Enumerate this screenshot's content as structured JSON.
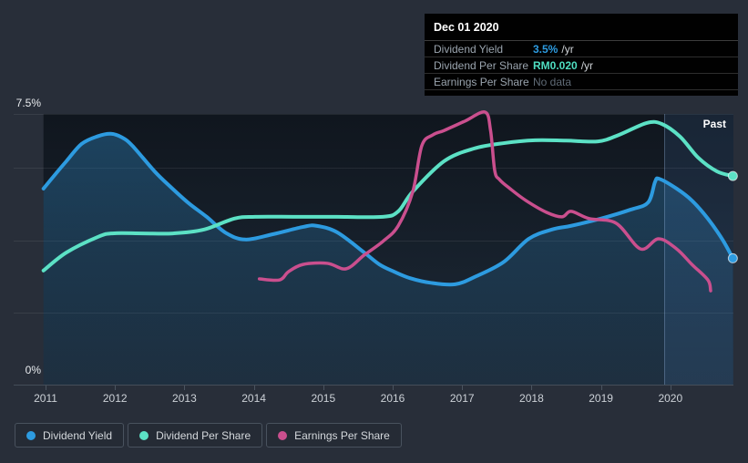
{
  "tooltip": {
    "date": "Dec 01 2020",
    "rows": [
      {
        "label": "Dividend Yield",
        "value": "3.5%",
        "suffix": "/yr",
        "value_color": "#2d9be0",
        "muted": false
      },
      {
        "label": "Dividend Per Share",
        "value": "RM0.020",
        "suffix": "/yr",
        "value_color": "#4fdfc2",
        "muted": false
      },
      {
        "label": "Earnings Per Share",
        "value": "No data",
        "suffix": "",
        "value_color": "#606b76",
        "muted": true
      }
    ]
  },
  "axis": {
    "y_top_label": "7.5%",
    "y_bottom_label": "0%"
  },
  "annotations": {
    "past_label": "Past"
  },
  "chart_data": {
    "type": "line",
    "title": "",
    "xlabel": "",
    "ylabel": "",
    "y_unit": "%",
    "xlim": [
      2010.97,
      2020.91
    ],
    "ylim": [
      0,
      7.5
    ],
    "x_ticks": [
      2011,
      2012,
      2013,
      2014,
      2015,
      2016,
      2017,
      2018,
      2019,
      2020
    ],
    "gridlines_pct": [
      7.5,
      6,
      4,
      2
    ],
    "grid": true,
    "legend_position": "bottom-left",
    "past_boundary_x": 2019.91,
    "series": [
      {
        "name": "Dividend Yield",
        "color": "#2d9be0",
        "area_fill": true,
        "end_dot": true,
        "points": [
          [
            2010.97,
            5.43
          ],
          [
            2011.15,
            5.85
          ],
          [
            2011.3,
            6.19
          ],
          [
            2011.52,
            6.67
          ],
          [
            2011.75,
            6.88
          ],
          [
            2011.94,
            6.95
          ],
          [
            2012.1,
            6.85
          ],
          [
            2012.25,
            6.62
          ],
          [
            2012.57,
            5.91
          ],
          [
            2012.8,
            5.48
          ],
          [
            2013.06,
            5.03
          ],
          [
            2013.32,
            4.65
          ],
          [
            2013.6,
            4.2
          ],
          [
            2013.88,
            4.02
          ],
          [
            2014.28,
            4.17
          ],
          [
            2014.71,
            4.37
          ],
          [
            2014.9,
            4.4
          ],
          [
            2015.2,
            4.22
          ],
          [
            2015.59,
            3.66
          ],
          [
            2015.81,
            3.33
          ],
          [
            2016.02,
            3.13
          ],
          [
            2016.25,
            2.95
          ],
          [
            2016.55,
            2.82
          ],
          [
            2016.9,
            2.78
          ],
          [
            2017.2,
            3.0
          ],
          [
            2017.6,
            3.4
          ],
          [
            2017.96,
            4.04
          ],
          [
            2018.3,
            4.3
          ],
          [
            2018.57,
            4.4
          ],
          [
            2019.0,
            4.6
          ],
          [
            2019.43,
            4.85
          ],
          [
            2019.68,
            5.05
          ],
          [
            2019.78,
            5.62
          ],
          [
            2019.84,
            5.7
          ],
          [
            2020.09,
            5.43
          ],
          [
            2020.31,
            5.1
          ],
          [
            2020.54,
            4.6
          ],
          [
            2020.75,
            4.02
          ],
          [
            2020.9,
            3.5
          ]
        ]
      },
      {
        "name": "Dividend Per Share",
        "color": "#5ce1c5",
        "area_fill": false,
        "end_dot": true,
        "points": [
          [
            2010.97,
            3.16
          ],
          [
            2011.3,
            3.66
          ],
          [
            2011.75,
            4.09
          ],
          [
            2011.96,
            4.19
          ],
          [
            2012.4,
            4.19
          ],
          [
            2012.84,
            4.19
          ],
          [
            2013.27,
            4.29
          ],
          [
            2013.72,
            4.6
          ],
          [
            2014.02,
            4.65
          ],
          [
            2014.6,
            4.65
          ],
          [
            2015.2,
            4.65
          ],
          [
            2015.86,
            4.65
          ],
          [
            2016.08,
            4.8
          ],
          [
            2016.29,
            5.35
          ],
          [
            2016.74,
            6.19
          ],
          [
            2017.17,
            6.54
          ],
          [
            2017.6,
            6.69
          ],
          [
            2018.05,
            6.77
          ],
          [
            2018.5,
            6.76
          ],
          [
            2018.96,
            6.74
          ],
          [
            2019.26,
            6.92
          ],
          [
            2019.66,
            7.25
          ],
          [
            2019.88,
            7.22
          ],
          [
            2020.14,
            6.87
          ],
          [
            2020.4,
            6.29
          ],
          [
            2020.67,
            5.91
          ],
          [
            2020.9,
            5.78
          ]
        ]
      },
      {
        "name": "Earnings Per Share",
        "color": "#ca4f8e",
        "area_fill": false,
        "end_dot": false,
        "points": [
          [
            2014.08,
            2.93
          ],
          [
            2014.37,
            2.9
          ],
          [
            2014.5,
            3.13
          ],
          [
            2014.71,
            3.33
          ],
          [
            2015.06,
            3.36
          ],
          [
            2015.33,
            3.21
          ],
          [
            2015.59,
            3.59
          ],
          [
            2015.86,
            3.97
          ],
          [
            2016.08,
            4.4
          ],
          [
            2016.29,
            5.35
          ],
          [
            2016.42,
            6.62
          ],
          [
            2016.58,
            6.92
          ],
          [
            2016.74,
            7.04
          ],
          [
            2017.04,
            7.3
          ],
          [
            2017.33,
            7.55
          ],
          [
            2017.41,
            7.04
          ],
          [
            2017.47,
            5.93
          ],
          [
            2017.54,
            5.68
          ],
          [
            2017.69,
            5.43
          ],
          [
            2017.92,
            5.1
          ],
          [
            2018.22,
            4.77
          ],
          [
            2018.44,
            4.65
          ],
          [
            2018.57,
            4.8
          ],
          [
            2018.83,
            4.6
          ],
          [
            2019.22,
            4.47
          ],
          [
            2019.57,
            3.76
          ],
          [
            2019.83,
            4.04
          ],
          [
            2020.09,
            3.76
          ],
          [
            2020.31,
            3.33
          ],
          [
            2020.54,
            2.9
          ],
          [
            2020.58,
            2.6
          ]
        ]
      }
    ]
  }
}
